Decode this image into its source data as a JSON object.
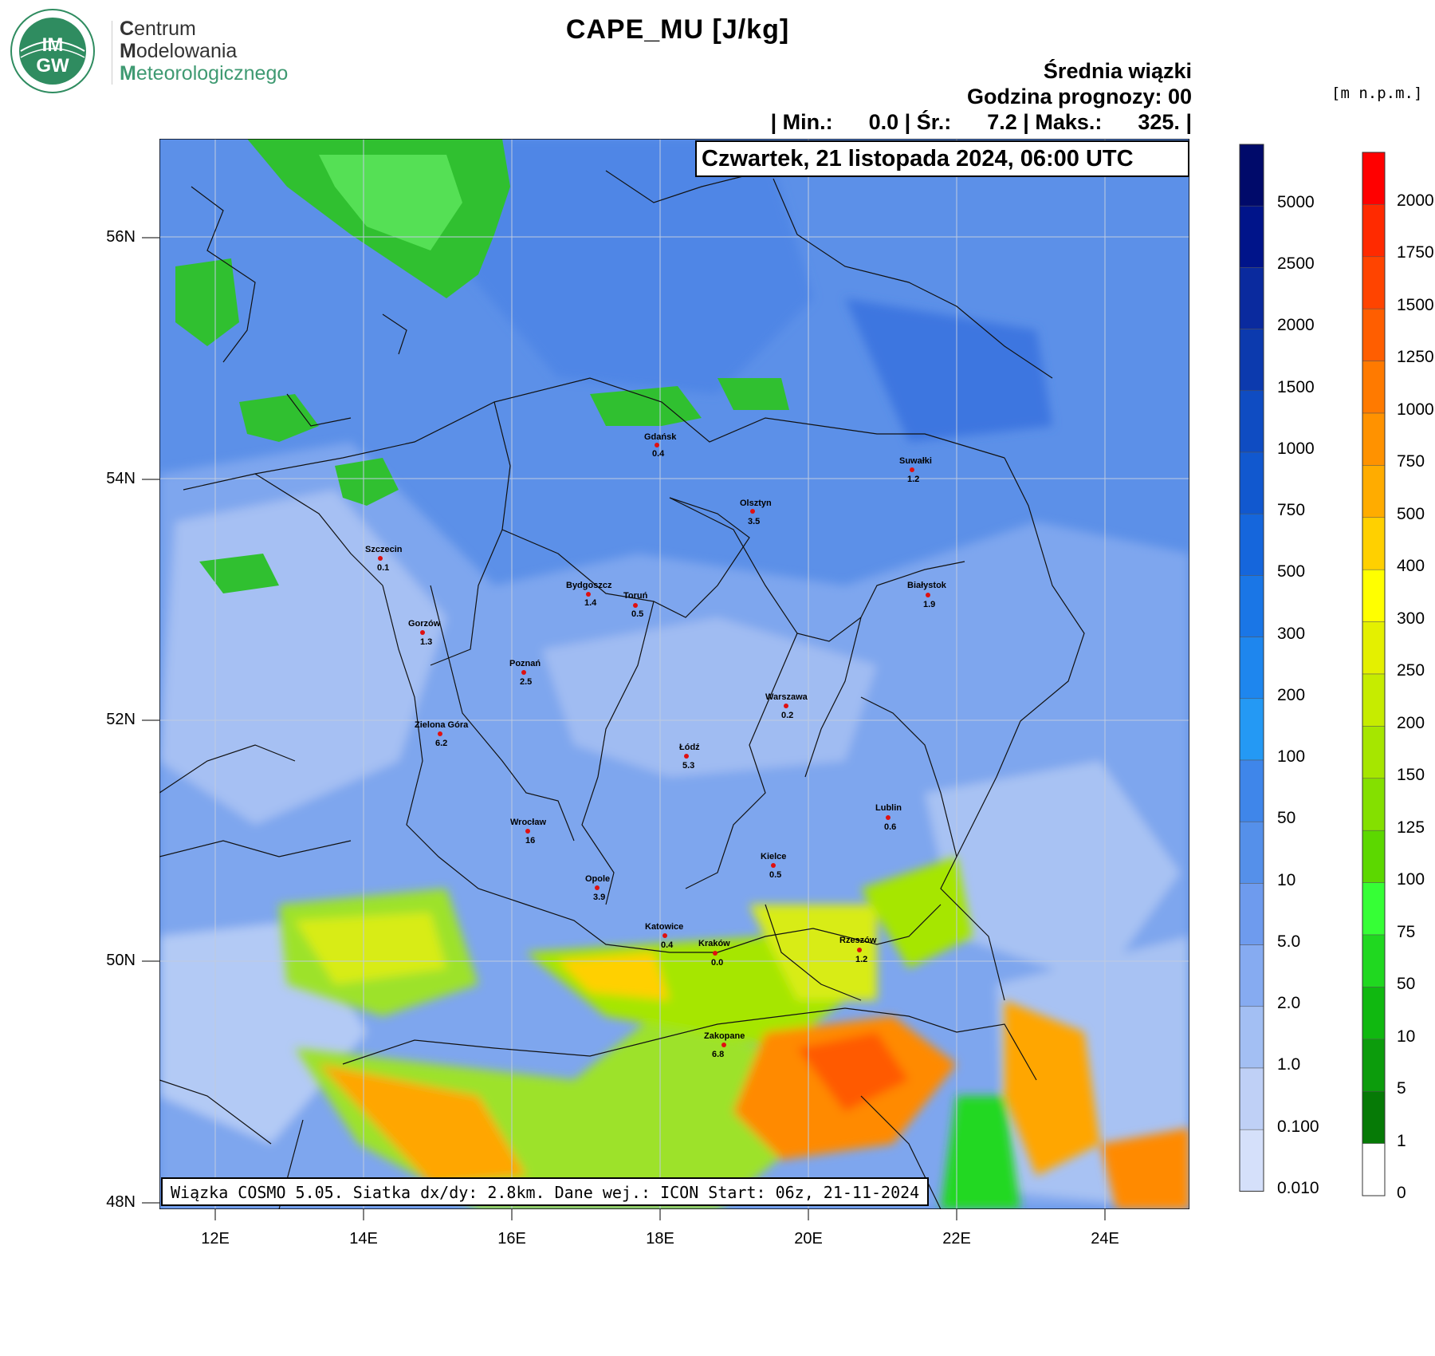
{
  "logo": {
    "line1_initial": "C",
    "line1_rest": "entrum",
    "line2_initial": "M",
    "line2_rest": "odelowania",
    "line3_initial": "M",
    "line3_rest": "eteorologicznego",
    "badge_top": "IM",
    "badge_bottom": "GW",
    "colors": {
      "green": "#3f9a72",
      "badge": "#2f8c60"
    }
  },
  "header": {
    "title": "CAPE_MU [J/kg]",
    "subtitle1": "Średnia wiązki",
    "subtitle2": "Godzina prognozy: 00",
    "stats": "| Min.:      0.0 | Śr.:      7.2 | Maks.:      325. |",
    "date": "Czwartek, 21 listopada 2024, 06:00 UTC"
  },
  "units_label": "[m n.p.m.]",
  "info_box": "Wiązka COSMO 5.05. Siatka dx/dy: 2.8km. Dane wej.: ICON Start: 06z, 21-11-2024",
  "axes": {
    "lat_labels": [
      "56N",
      "54N",
      "52N",
      "50N",
      "48N"
    ],
    "lon_labels": [
      "12E",
      "14E",
      "16E",
      "18E",
      "20E",
      "22E",
      "24E"
    ]
  },
  "colorbar_cape": {
    "labels": [
      "5000",
      "2500",
      "2000",
      "1500",
      "1000",
      "750",
      "500",
      "300",
      "200",
      "100",
      "50",
      "10",
      "5.0",
      "2.0",
      "1.0",
      "0.100",
      "0.010"
    ],
    "colors": [
      "#000a6a",
      "#00148a",
      "#0a2a9e",
      "#0c3aae",
      "#0f4cc2",
      "#1158cf",
      "#1566dc",
      "#1a76e6",
      "#1e86ee",
      "#2499f4",
      "#3f86ea",
      "#5590ea",
      "#6e9bee",
      "#86abf1",
      "#a3bff3",
      "#bfd0f6",
      "#d5e0fa"
    ]
  },
  "colorbar_terrain": {
    "labels": [
      "2000",
      "1750",
      "1500",
      "1250",
      "1000",
      "750",
      "500",
      "400",
      "300",
      "250",
      "200",
      "150",
      "125",
      "100",
      "75",
      "50",
      "10",
      "5",
      "1",
      "0"
    ],
    "colors": [
      "#ff0000",
      "#ff2a00",
      "#ff4400",
      "#ff5e00",
      "#ff7a00",
      "#ff9200",
      "#ffac00",
      "#ffd000",
      "#ffff00",
      "#e4f000",
      "#c6ec00",
      "#a6e600",
      "#84e000",
      "#5cd800",
      "#36ff36",
      "#20d820",
      "#10b810",
      "#0c9c0c",
      "#067a06",
      "#ffffff"
    ]
  },
  "cities": [
    {
      "name": "Gdańsk",
      "value": "0.4"
    },
    {
      "name": "Suwałki",
      "value": "1.2"
    },
    {
      "name": "Olsztyn",
      "value": "3.5"
    },
    {
      "name": "Szczecin",
      "value": "0.1"
    },
    {
      "name": "Bydgoszcz",
      "value": "1.4"
    },
    {
      "name": "Toruń",
      "value": "0.5"
    },
    {
      "name": "Białystok",
      "value": "1.9"
    },
    {
      "name": "Gorzów",
      "value": "1.3"
    },
    {
      "name": "Poznań",
      "value": "2.5"
    },
    {
      "name": "Warszawa",
      "value": "0.2"
    },
    {
      "name": "Zielona Góra",
      "value": "6.2"
    },
    {
      "name": "Łódź",
      "value": "5.3"
    },
    {
      "name": "Lublin",
      "value": "0.6"
    },
    {
      "name": "Wrocław",
      "value": "16"
    },
    {
      "name": "Kielce",
      "value": "0.5"
    },
    {
      "name": "Opole",
      "value": "3.9"
    },
    {
      "name": "Katowice",
      "value": "0.4"
    },
    {
      "name": "Kraków",
      "value": "0.0"
    },
    {
      "name": "Rzeszów",
      "value": "1.2"
    },
    {
      "name": "Zakopane",
      "value": "6.8"
    }
  ]
}
